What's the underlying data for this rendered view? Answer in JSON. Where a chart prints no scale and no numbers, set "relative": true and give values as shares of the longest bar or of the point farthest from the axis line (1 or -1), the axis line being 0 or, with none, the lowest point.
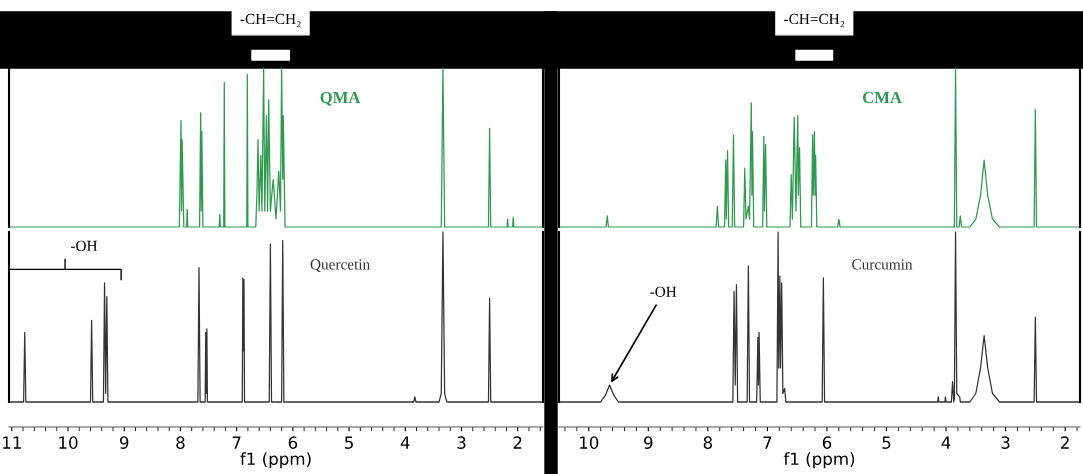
{
  "chart_data": [
    {
      "type": "line",
      "relative": true,
      "xlim": [
        11.05,
        1.55
      ],
      "tick_labels": false,
      "annotations": [
        "-CH=CH₂"
      ],
      "series": [
        {
          "name": "QMA",
          "color": "#2e9a4e",
          "x": [
            11.05,
            8.02,
            7.99,
            7.98,
            7.97,
            7.94,
            7.89,
            7.88,
            7.87,
            7.66,
            7.64,
            7.63,
            7.62,
            7.6,
            7.31,
            7.3,
            7.29,
            7.23,
            7.22,
            7.21,
            6.82,
            6.81,
            6.8,
            6.66,
            6.64,
            6.62,
            6.6,
            6.57,
            6.55,
            6.52,
            6.5,
            6.47,
            6.45,
            6.43,
            6.4,
            6.35,
            6.3,
            6.25,
            6.22,
            6.2,
            6.18,
            6.17,
            6.14,
            3.36,
            3.33,
            3.3,
            2.52,
            2.5,
            2.48,
            2.19,
            2.18,
            2.17,
            2.09,
            2.08,
            2.07,
            1.55
          ],
          "values": [
            0,
            0,
            0.67,
            0.1,
            0.55,
            0,
            0,
            0.11,
            0,
            0,
            0.72,
            0.1,
            0.6,
            0,
            0,
            0.08,
            0,
            0,
            0.91,
            0,
            0,
            0.96,
            0,
            0,
            0.2,
            0.55,
            0.1,
            0.45,
            0.1,
            1.0,
            0.1,
            0.7,
            0.1,
            0.8,
            0.1,
            0.3,
            0.05,
            0.35,
            0.1,
            1.0,
            0.3,
            0.7,
            0,
            0,
            1.0,
            0,
            0,
            0.62,
            0,
            0,
            0.05,
            0,
            0,
            0.06,
            0,
            0
          ]
        }
      ]
    },
    {
      "type": "line",
      "relative": true,
      "xlim": [
        11.05,
        1.55
      ],
      "xticks": [
        {
          "value": 11,
          "label": "11"
        },
        10,
        9,
        8,
        7,
        6,
        5,
        4,
        3,
        2
      ],
      "xlabel": "f1 (ppm)",
      "tick_labels": "x",
      "annotations": [
        "-OH"
      ],
      "series": [
        {
          "name": "Quercetin",
          "color": "#333333",
          "x": [
            11.05,
            10.79,
            10.77,
            10.75,
            9.6,
            9.58,
            9.56,
            9.37,
            9.35,
            9.33,
            9.31,
            9.29,
            7.69,
            7.67,
            7.65,
            7.56,
            7.55,
            7.54,
            7.53,
            7.52,
            6.9,
            6.89,
            6.88,
            6.87,
            6.86,
            6.42,
            6.4,
            6.38,
            6.2,
            6.18,
            6.16,
            3.85,
            3.83,
            3.81,
            3.4,
            3.36,
            3.33,
            3.3,
            3.26,
            2.52,
            2.5,
            2.48,
            1.55
          ],
          "values": [
            0,
            0,
            0.41,
            0,
            0,
            0.48,
            0,
            0,
            0.7,
            0.05,
            0.62,
            0,
            0,
            0.79,
            0,
            0,
            0.41,
            0.05,
            0.43,
            0,
            0,
            0.73,
            0.3,
            0.72,
            0,
            0,
            0.93,
            0,
            0,
            0.95,
            0,
            0,
            0.03,
            0,
            0,
            0.05,
            1.0,
            0.05,
            0,
            0,
            0.61,
            0,
            0
          ]
        }
      ]
    },
    {
      "type": "line",
      "relative": true,
      "xlim": [
        10.5,
        1.75
      ],
      "tick_labels": false,
      "annotations": [
        "-CH=CH₂"
      ],
      "series": [
        {
          "name": "CMA",
          "color": "#2e9a4e",
          "x": [
            10.5,
            9.71,
            9.69,
            9.67,
            7.86,
            7.84,
            7.82,
            7.72,
            7.7,
            7.69,
            7.67,
            7.65,
            7.59,
            7.57,
            7.55,
            7.4,
            7.38,
            7.36,
            7.32,
            7.3,
            7.27,
            7.26,
            7.25,
            7.23,
            7.08,
            7.06,
            7.05,
            7.03,
            7.01,
            6.62,
            6.6,
            6.58,
            6.55,
            6.52,
            6.49,
            6.48,
            6.46,
            6.44,
            6.26,
            6.24,
            6.23,
            6.21,
            6.2,
            6.19,
            6.17,
            5.82,
            5.8,
            5.78,
            3.86,
            3.84,
            3.82,
            3.78,
            3.76,
            3.74,
            3.6,
            3.5,
            3.42,
            3.36,
            3.3,
            3.22,
            3.1,
            2.52,
            2.5,
            2.48,
            1.75
          ],
          "values": [
            0,
            0,
            0.07,
            0,
            0,
            0.13,
            0,
            0,
            0.42,
            0.05,
            0.48,
            0,
            0,
            0.58,
            0,
            0,
            0.37,
            0.05,
            0.13,
            0.05,
            0.78,
            0.2,
            0.6,
            0,
            0,
            0.57,
            0.1,
            0.52,
            0,
            0,
            0.33,
            0.05,
            0.69,
            0.1,
            0.7,
            0.2,
            0.5,
            0,
            0,
            0.58,
            0.2,
            0.6,
            0.2,
            0.45,
            0,
            0,
            0.05,
            0,
            0,
            1.0,
            0,
            0,
            0.07,
            0,
            0,
            0.05,
            0.2,
            0.42,
            0.2,
            0.05,
            0,
            0,
            0.74,
            0,
            0
          ]
        }
      ]
    },
    {
      "type": "line",
      "relative": true,
      "xlim": [
        10.5,
        1.75
      ],
      "xticks": [
        10,
        9,
        8,
        7,
        6,
        5,
        4,
        3,
        2
      ],
      "xlabel": "f1 (ppm)",
      "tick_labels": "x",
      "annotations": [
        {
          "text": "-OH",
          "x": 9.65,
          "y": 0.1
        }
      ],
      "series": [
        {
          "name": "Curcumin",
          "color": "#333333",
          "x": [
            10.5,
            9.8,
            9.72,
            9.65,
            9.58,
            9.5,
            7.58,
            7.56,
            7.54,
            7.52,
            7.5,
            7.34,
            7.32,
            7.3,
            7.18,
            7.16,
            7.15,
            7.14,
            7.12,
            6.84,
            6.82,
            6.81,
            6.79,
            6.78,
            6.76,
            6.74,
            6.71,
            6.69,
            6.08,
            6.06,
            6.04,
            4.14,
            4.13,
            4.12,
            4.02,
            4.01,
            4.0,
            3.91,
            3.89,
            3.87,
            3.86,
            3.84,
            3.82,
            3.77,
            3.76,
            3.6,
            3.5,
            3.42,
            3.36,
            3.3,
            3.22,
            3.1,
            2.52,
            2.5,
            2.48,
            1.75
          ],
          "values": [
            0,
            0,
            0.04,
            0.1,
            0.04,
            0,
            0,
            0.65,
            0.1,
            0.69,
            0,
            0,
            0.8,
            0,
            0,
            0.38,
            0.1,
            0.41,
            0,
            0,
            1.0,
            0.2,
            0.74,
            0.2,
            0.7,
            0.05,
            0.08,
            0,
            0,
            0.73,
            0,
            0,
            0.03,
            0,
            0,
            0.03,
            0,
            0,
            0.12,
            0,
            0.02,
            1.0,
            0.05,
            0.03,
            0,
            0,
            0.05,
            0.2,
            0.39,
            0.2,
            0.05,
            0,
            0,
            0.5,
            0,
            0
          ]
        }
      ]
    }
  ]
}
